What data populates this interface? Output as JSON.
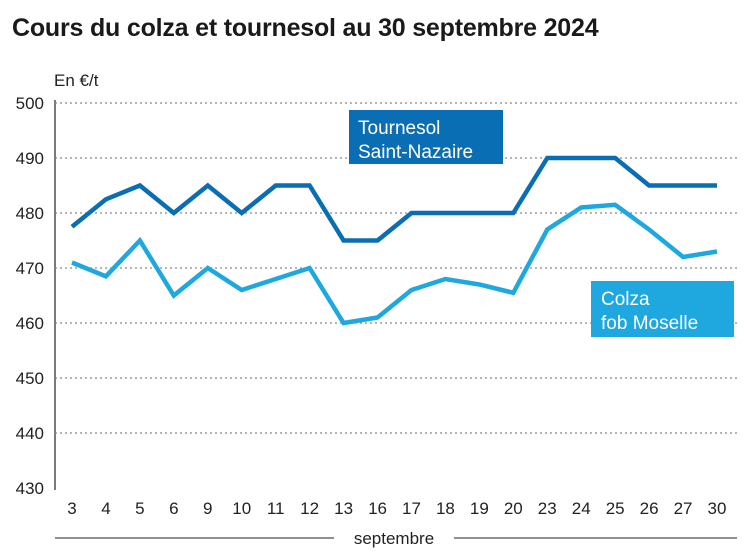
{
  "title": "Cours du colza et tournesol au 30 septembre 2024",
  "chart_data": {
    "type": "line",
    "title": "Cours du colza et tournesol au 30 septembre 2024",
    "ylabel": "En €/t",
    "xlabel": "septembre",
    "ylim": [
      430,
      500
    ],
    "yticks": [
      500,
      490,
      480,
      470,
      460,
      450,
      440,
      430
    ],
    "grid": true,
    "categories": [
      "3",
      "4",
      "5",
      "6",
      "9",
      "10",
      "11",
      "12",
      "13",
      "16",
      "17",
      "18",
      "19",
      "20",
      "23",
      "24",
      "25",
      "26",
      "27",
      "30"
    ],
    "series": [
      {
        "name": "Tournesol Saint-Nazaire",
        "label_lines": [
          "Tournesol",
          "Saint-Nazaire"
        ],
        "color": "#0a6eb4",
        "values": [
          477.5,
          482.5,
          485,
          480,
          485,
          480,
          485,
          485,
          475,
          475,
          480,
          480,
          480,
          480,
          490,
          490,
          490,
          485,
          485,
          485
        ]
      },
      {
        "name": "Colza fob Moselle",
        "label_lines": [
          "Colza",
          "fob Moselle"
        ],
        "color": "#1ea8df",
        "values": [
          471,
          468.5,
          475,
          465,
          470,
          466,
          468,
          470,
          460,
          461,
          466,
          468,
          467,
          465.5,
          477,
          481,
          481.5,
          477,
          472,
          473
        ]
      }
    ]
  }
}
